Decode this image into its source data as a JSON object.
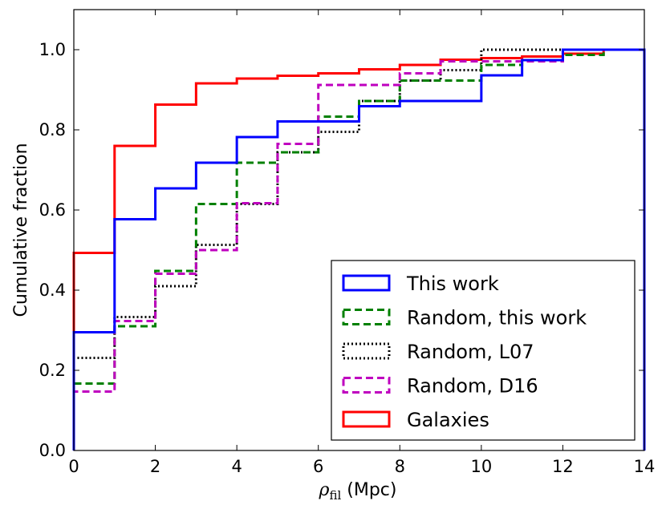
{
  "chart_data": {
    "type": "step",
    "xlabel": "ρfil (Mpc)",
    "xlabel_symbol": "ρ",
    "xlabel_subscript": "fil",
    "xlabel_unit": " (Mpc)",
    "ylabel": "Cumulative fraction",
    "xlim": [
      0,
      14
    ],
    "ylim": [
      0,
      1.1
    ],
    "xticks": [
      0,
      2,
      4,
      6,
      8,
      10,
      12,
      14
    ],
    "xtick_labels": [
      "0",
      "2",
      "4",
      "6",
      "8",
      "10",
      "12",
      "14"
    ],
    "yticks": [
      0.0,
      0.2,
      0.4,
      0.6,
      0.8,
      1.0
    ],
    "ytick_labels": [
      "0.0",
      "0.2",
      "0.4",
      "0.6",
      "0.8",
      "1.0"
    ],
    "grid": false,
    "legend_position": "lower-right",
    "series": [
      {
        "name": "Galaxies",
        "color": "#ff0000",
        "style": "solid",
        "x_edges": [
          0,
          1,
          2,
          3,
          4,
          5,
          6,
          7,
          8,
          9,
          10,
          11,
          12,
          13,
          14
        ],
        "values": [
          0.493,
          0.76,
          0.863,
          0.916,
          0.928,
          0.935,
          0.941,
          0.951,
          0.962,
          0.975,
          0.979,
          0.983,
          0.99,
          1.0
        ]
      },
      {
        "name": "Random, L07",
        "color": "#000000",
        "style": "dotted",
        "x_edges": [
          0,
          1,
          2,
          3,
          4,
          5,
          6,
          7,
          8,
          9,
          10,
          11,
          12,
          13,
          14
        ],
        "values": [
          0.231,
          0.333,
          0.41,
          0.513,
          0.615,
          0.744,
          0.795,
          0.872,
          0.923,
          0.949,
          1.0,
          1.0,
          1.0,
          1.0
        ]
      },
      {
        "name": "Random, this work",
        "color": "#008000",
        "style": "dashed",
        "x_edges": [
          0,
          1,
          2,
          3,
          4,
          5,
          6,
          7,
          8,
          9,
          10,
          11,
          12,
          13,
          14
        ],
        "values": [
          0.167,
          0.31,
          0.448,
          0.615,
          0.718,
          0.744,
          0.833,
          0.872,
          0.923,
          0.923,
          0.962,
          0.974,
          0.987,
          1.0
        ]
      },
      {
        "name": "Random, D16",
        "color": "#bf00bf",
        "style": "dashed",
        "x_edges": [
          0,
          1,
          2,
          3,
          4,
          5,
          6,
          7,
          8,
          9,
          10,
          11,
          12,
          13,
          14
        ],
        "values": [
          0.147,
          0.323,
          0.441,
          0.5,
          0.617,
          0.765,
          0.912,
          0.912,
          0.941,
          0.971,
          0.971,
          0.971,
          1.0,
          1.0
        ]
      },
      {
        "name": "This work",
        "color": "#0000ff",
        "style": "solid",
        "x_edges": [
          0,
          1,
          2,
          3,
          4,
          5,
          6,
          7,
          8,
          9,
          10,
          11,
          12,
          13,
          14
        ],
        "values": [
          0.295,
          0.577,
          0.654,
          0.718,
          0.782,
          0.821,
          0.821,
          0.859,
          0.872,
          0.872,
          0.936,
          0.974,
          1.0,
          1.0
        ]
      }
    ],
    "legend": [
      {
        "label": "This work",
        "color": "#0000ff",
        "style": "solid"
      },
      {
        "label": "Random, this work",
        "color": "#008000",
        "style": "dashed"
      },
      {
        "label": "Random, L07",
        "color": "#000000",
        "style": "dotted"
      },
      {
        "label": "Random, D16",
        "color": "#bf00bf",
        "style": "dashed"
      },
      {
        "label": "Galaxies",
        "color": "#ff0000",
        "style": "solid"
      }
    ]
  }
}
